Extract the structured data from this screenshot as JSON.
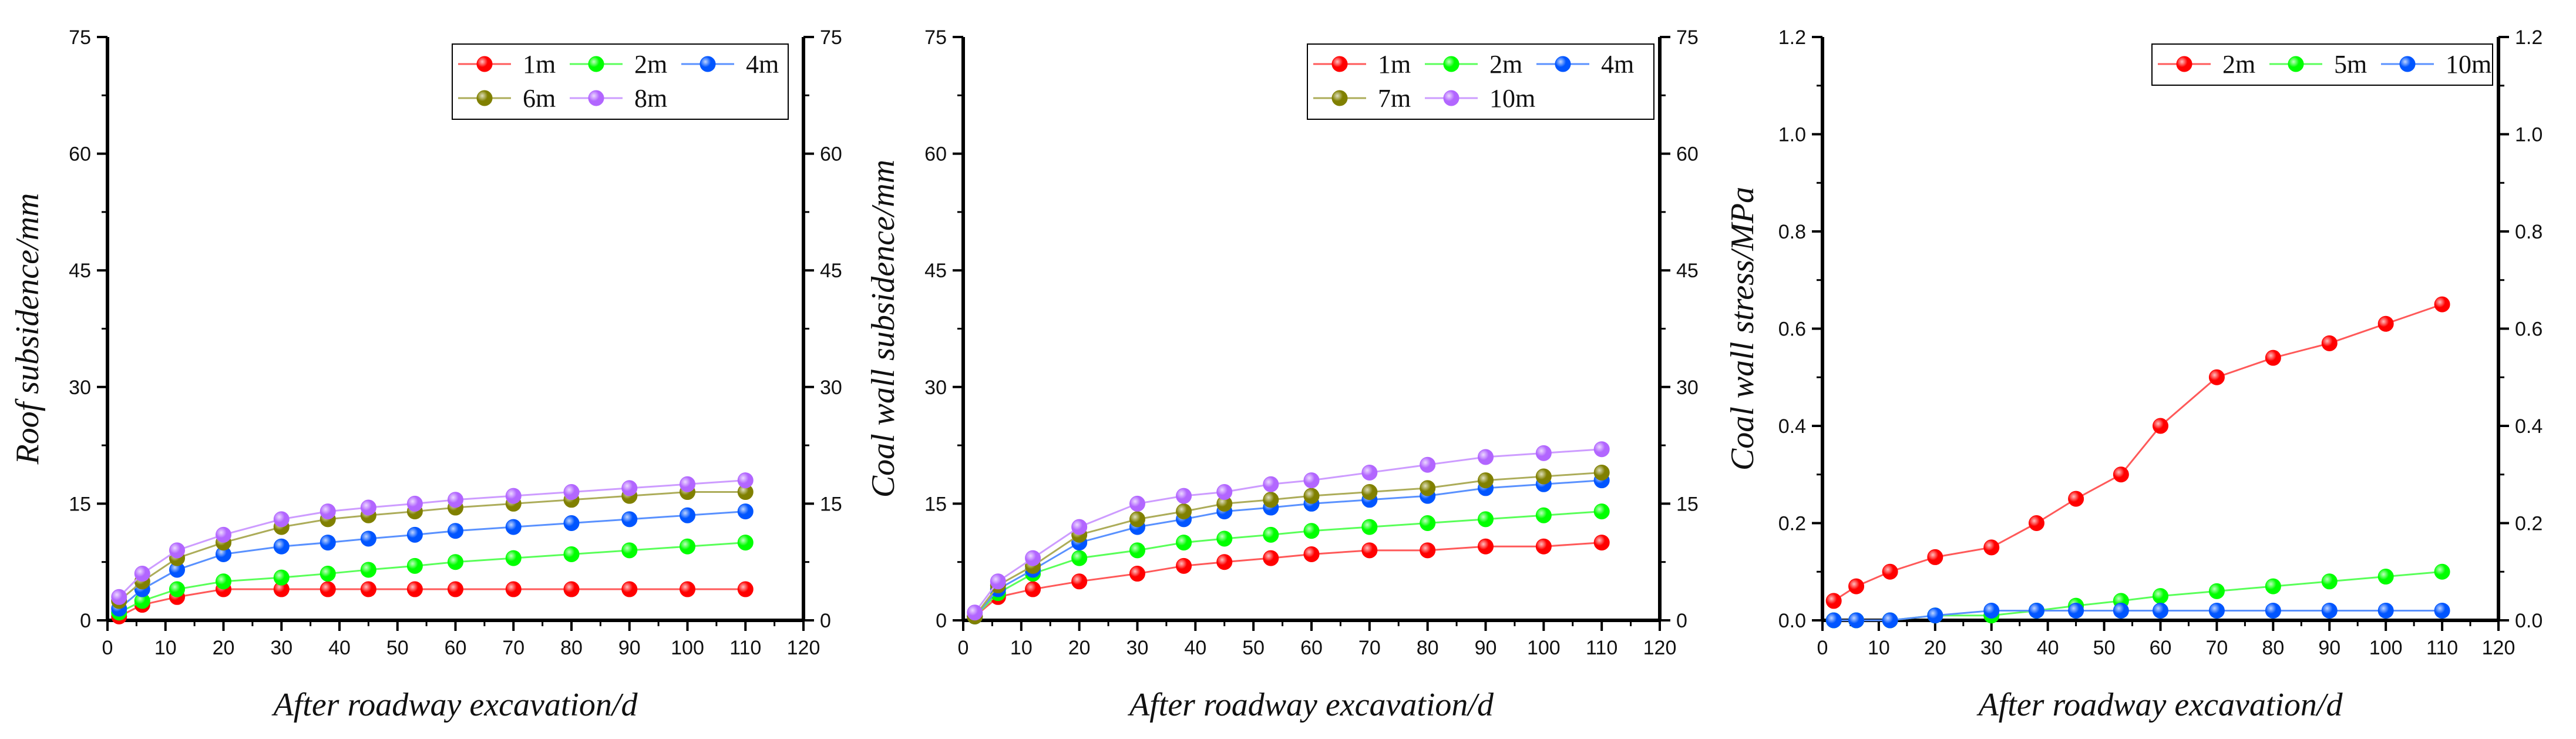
{
  "chart_data": [
    {
      "type": "line",
      "xlabel": "After roadway excavation/d",
      "ylabel": "Roof subsidence/mm",
      "xlim": [
        0,
        120
      ],
      "ylim": [
        0,
        75
      ],
      "xticks": [
        0,
        10,
        20,
        30,
        40,
        50,
        60,
        70,
        80,
        90,
        100,
        110,
        120
      ],
      "yticks": [
        0,
        15,
        30,
        45,
        60,
        75
      ],
      "ytick_labels": [
        "0",
        "15",
        "30",
        "45",
        "60",
        "75"
      ],
      "right_axis": true,
      "grid": false,
      "legend_position": "top-right",
      "x": [
        2,
        6,
        12,
        20,
        30,
        38,
        45,
        53,
        60,
        70,
        80,
        90,
        100,
        110
      ],
      "series": [
        {
          "name": "1m",
          "color": "#ff0000",
          "values": [
            0.5,
            2,
            3,
            4,
            4,
            4,
            4,
            4,
            4,
            4,
            4,
            4,
            4,
            4
          ]
        },
        {
          "name": "2m",
          "color": "#00ff00",
          "values": [
            1,
            2.5,
            4,
            5,
            5.5,
            6,
            6.5,
            7,
            7.5,
            8,
            8.5,
            9,
            9.5,
            10
          ]
        },
        {
          "name": "4m",
          "color": "#0055ff",
          "values": [
            1.5,
            4,
            6.5,
            8.5,
            9.5,
            10,
            10.5,
            11,
            11.5,
            12,
            12.5,
            13,
            13.5,
            14
          ]
        },
        {
          "name": "6m",
          "color": "#808000",
          "values": [
            2.5,
            5,
            8,
            10,
            12,
            13,
            13.5,
            14,
            14.5,
            15,
            15.5,
            16,
            16.5,
            16.5
          ]
        },
        {
          "name": "8m",
          "color": "#b266ff",
          "values": [
            3,
            6,
            9,
            11,
            13,
            14,
            14.5,
            15,
            15.5,
            16,
            16.5,
            17,
            17.5,
            18
          ]
        }
      ]
    },
    {
      "type": "line",
      "xlabel": "After roadway excavation/d",
      "ylabel": "Coal wall subsidence/mm",
      "xlim": [
        0,
        120
      ],
      "ylim": [
        0,
        75
      ],
      "xticks": [
        0,
        10,
        20,
        30,
        40,
        50,
        60,
        70,
        80,
        90,
        100,
        110,
        120
      ],
      "yticks": [
        0,
        15,
        30,
        45,
        60,
        75
      ],
      "ytick_labels": [
        "0",
        "15",
        "30",
        "45",
        "60",
        "75"
      ],
      "right_axis": true,
      "grid": false,
      "legend_position": "top-right",
      "x": [
        2,
        6,
        12,
        20,
        30,
        38,
        45,
        53,
        60,
        70,
        80,
        90,
        100,
        110
      ],
      "series": [
        {
          "name": "1m",
          "color": "#ff0000",
          "values": [
            0.5,
            3,
            4,
            5,
            6,
            7,
            7.5,
            8,
            8.5,
            9,
            9,
            9.5,
            9.5,
            10
          ]
        },
        {
          "name": "2m",
          "color": "#00ff00",
          "values": [
            0.5,
            3.5,
            6,
            8,
            9,
            10,
            10.5,
            11,
            11.5,
            12,
            12.5,
            13,
            13.5,
            14
          ]
        },
        {
          "name": "4m",
          "color": "#0055ff",
          "values": [
            0.5,
            4,
            6.5,
            10,
            12,
            13,
            14,
            14.5,
            15,
            15.5,
            16,
            17,
            17.5,
            18
          ]
        },
        {
          "name": "7m",
          "color": "#808000",
          "values": [
            0.5,
            4.5,
            7,
            11,
            13,
            14,
            15,
            15.5,
            16,
            16.5,
            17,
            18,
            18.5,
            19
          ]
        },
        {
          "name": "10m",
          "color": "#b266ff",
          "values": [
            1,
            5,
            8,
            12,
            15,
            16,
            16.5,
            17.5,
            18,
            19,
            20,
            21,
            21.5,
            22
          ]
        }
      ]
    },
    {
      "type": "line",
      "xlabel": "After roadway excavation/d",
      "ylabel": "Coal wall stress/MPa",
      "xlim": [
        0,
        120
      ],
      "ylim": [
        0,
        1.2
      ],
      "xticks": [
        0,
        10,
        20,
        30,
        40,
        50,
        60,
        70,
        80,
        90,
        100,
        110,
        120
      ],
      "yticks": [
        0,
        0.2,
        0.4,
        0.6,
        0.8,
        1.0,
        1.2
      ],
      "ytick_labels": [
        "0.0",
        "0.2",
        "0.4",
        "0.6",
        "0.8",
        "1.0",
        "1.2"
      ],
      "right_axis": true,
      "grid": false,
      "legend_position": "top-right",
      "x": [
        2,
        6,
        12,
        20,
        30,
        38,
        45,
        53,
        60,
        70,
        80,
        90,
        100,
        110
      ],
      "series": [
        {
          "name": "2m",
          "color": "#ff0000",
          "values": [
            0.04,
            0.07,
            0.1,
            0.13,
            0.15,
            0.2,
            0.25,
            0.3,
            0.4,
            0.5,
            0.54,
            0.57,
            0.61,
            0.65
          ]
        },
        {
          "name": "5m",
          "color": "#00ff00",
          "values": [
            0.0,
            0.0,
            0.0,
            0.01,
            0.01,
            0.02,
            0.03,
            0.04,
            0.05,
            0.06,
            0.07,
            0.08,
            0.09,
            0.1
          ]
        },
        {
          "name": "10m",
          "color": "#0055ff",
          "values": [
            0.0,
            0.0,
            0.0,
            0.01,
            0.02,
            0.02,
            0.02,
            0.02,
            0.02,
            0.02,
            0.02,
            0.02,
            0.02,
            0.02
          ]
        }
      ]
    }
  ]
}
